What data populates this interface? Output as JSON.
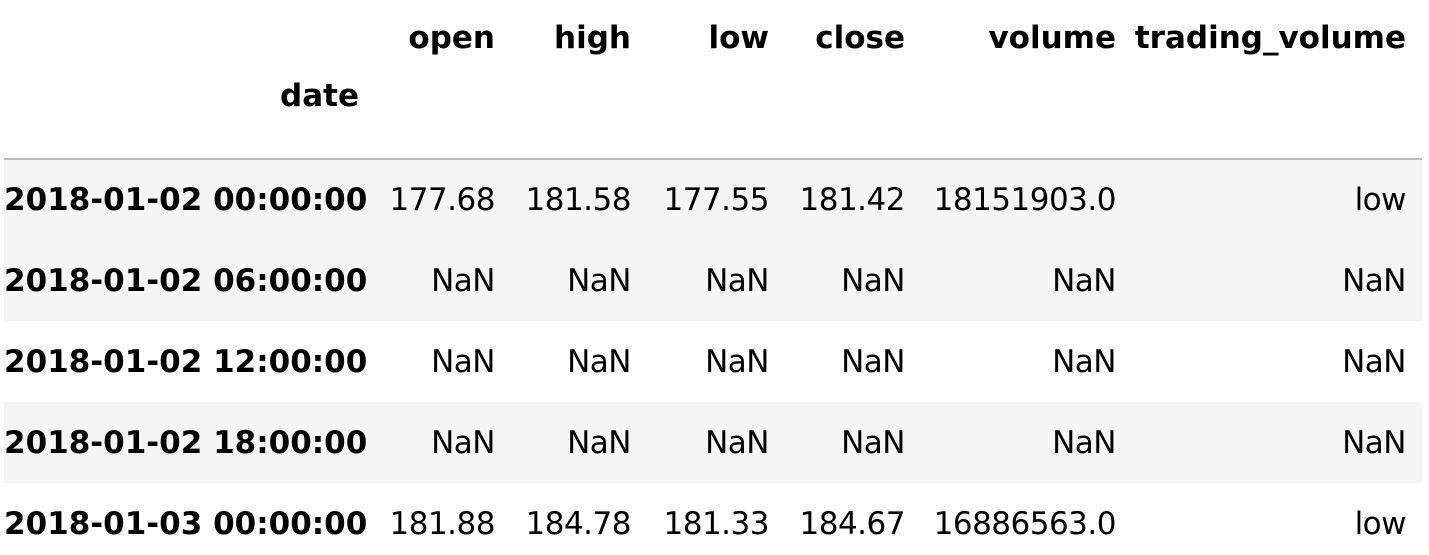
{
  "table": {
    "index_name": "date",
    "columns": [
      "open",
      "high",
      "low",
      "close",
      "volume",
      "trading_volume"
    ],
    "rows": [
      {
        "index": "2018-01-02 00:00:00",
        "values": [
          "177.68",
          "181.58",
          "177.55",
          "181.42",
          "18151903.0",
          "low"
        ]
      },
      {
        "index": "2018-01-02 06:00:00",
        "values": [
          "NaN",
          "NaN",
          "NaN",
          "NaN",
          "NaN",
          "NaN"
        ]
      },
      {
        "index": "2018-01-02 12:00:00",
        "values": [
          "NaN",
          "NaN",
          "NaN",
          "NaN",
          "NaN",
          "NaN"
        ]
      },
      {
        "index": "2018-01-02 18:00:00",
        "values": [
          "NaN",
          "NaN",
          "NaN",
          "NaN",
          "NaN",
          "NaN"
        ]
      },
      {
        "index": "2018-01-03 00:00:00",
        "values": [
          "181.88",
          "184.78",
          "181.33",
          "184.67",
          "16886563.0",
          "low"
        ]
      }
    ]
  },
  "colors": {
    "row_stripe": "#f5f5f5",
    "header_rule": "#bdbdbd",
    "text": "#000000"
  }
}
